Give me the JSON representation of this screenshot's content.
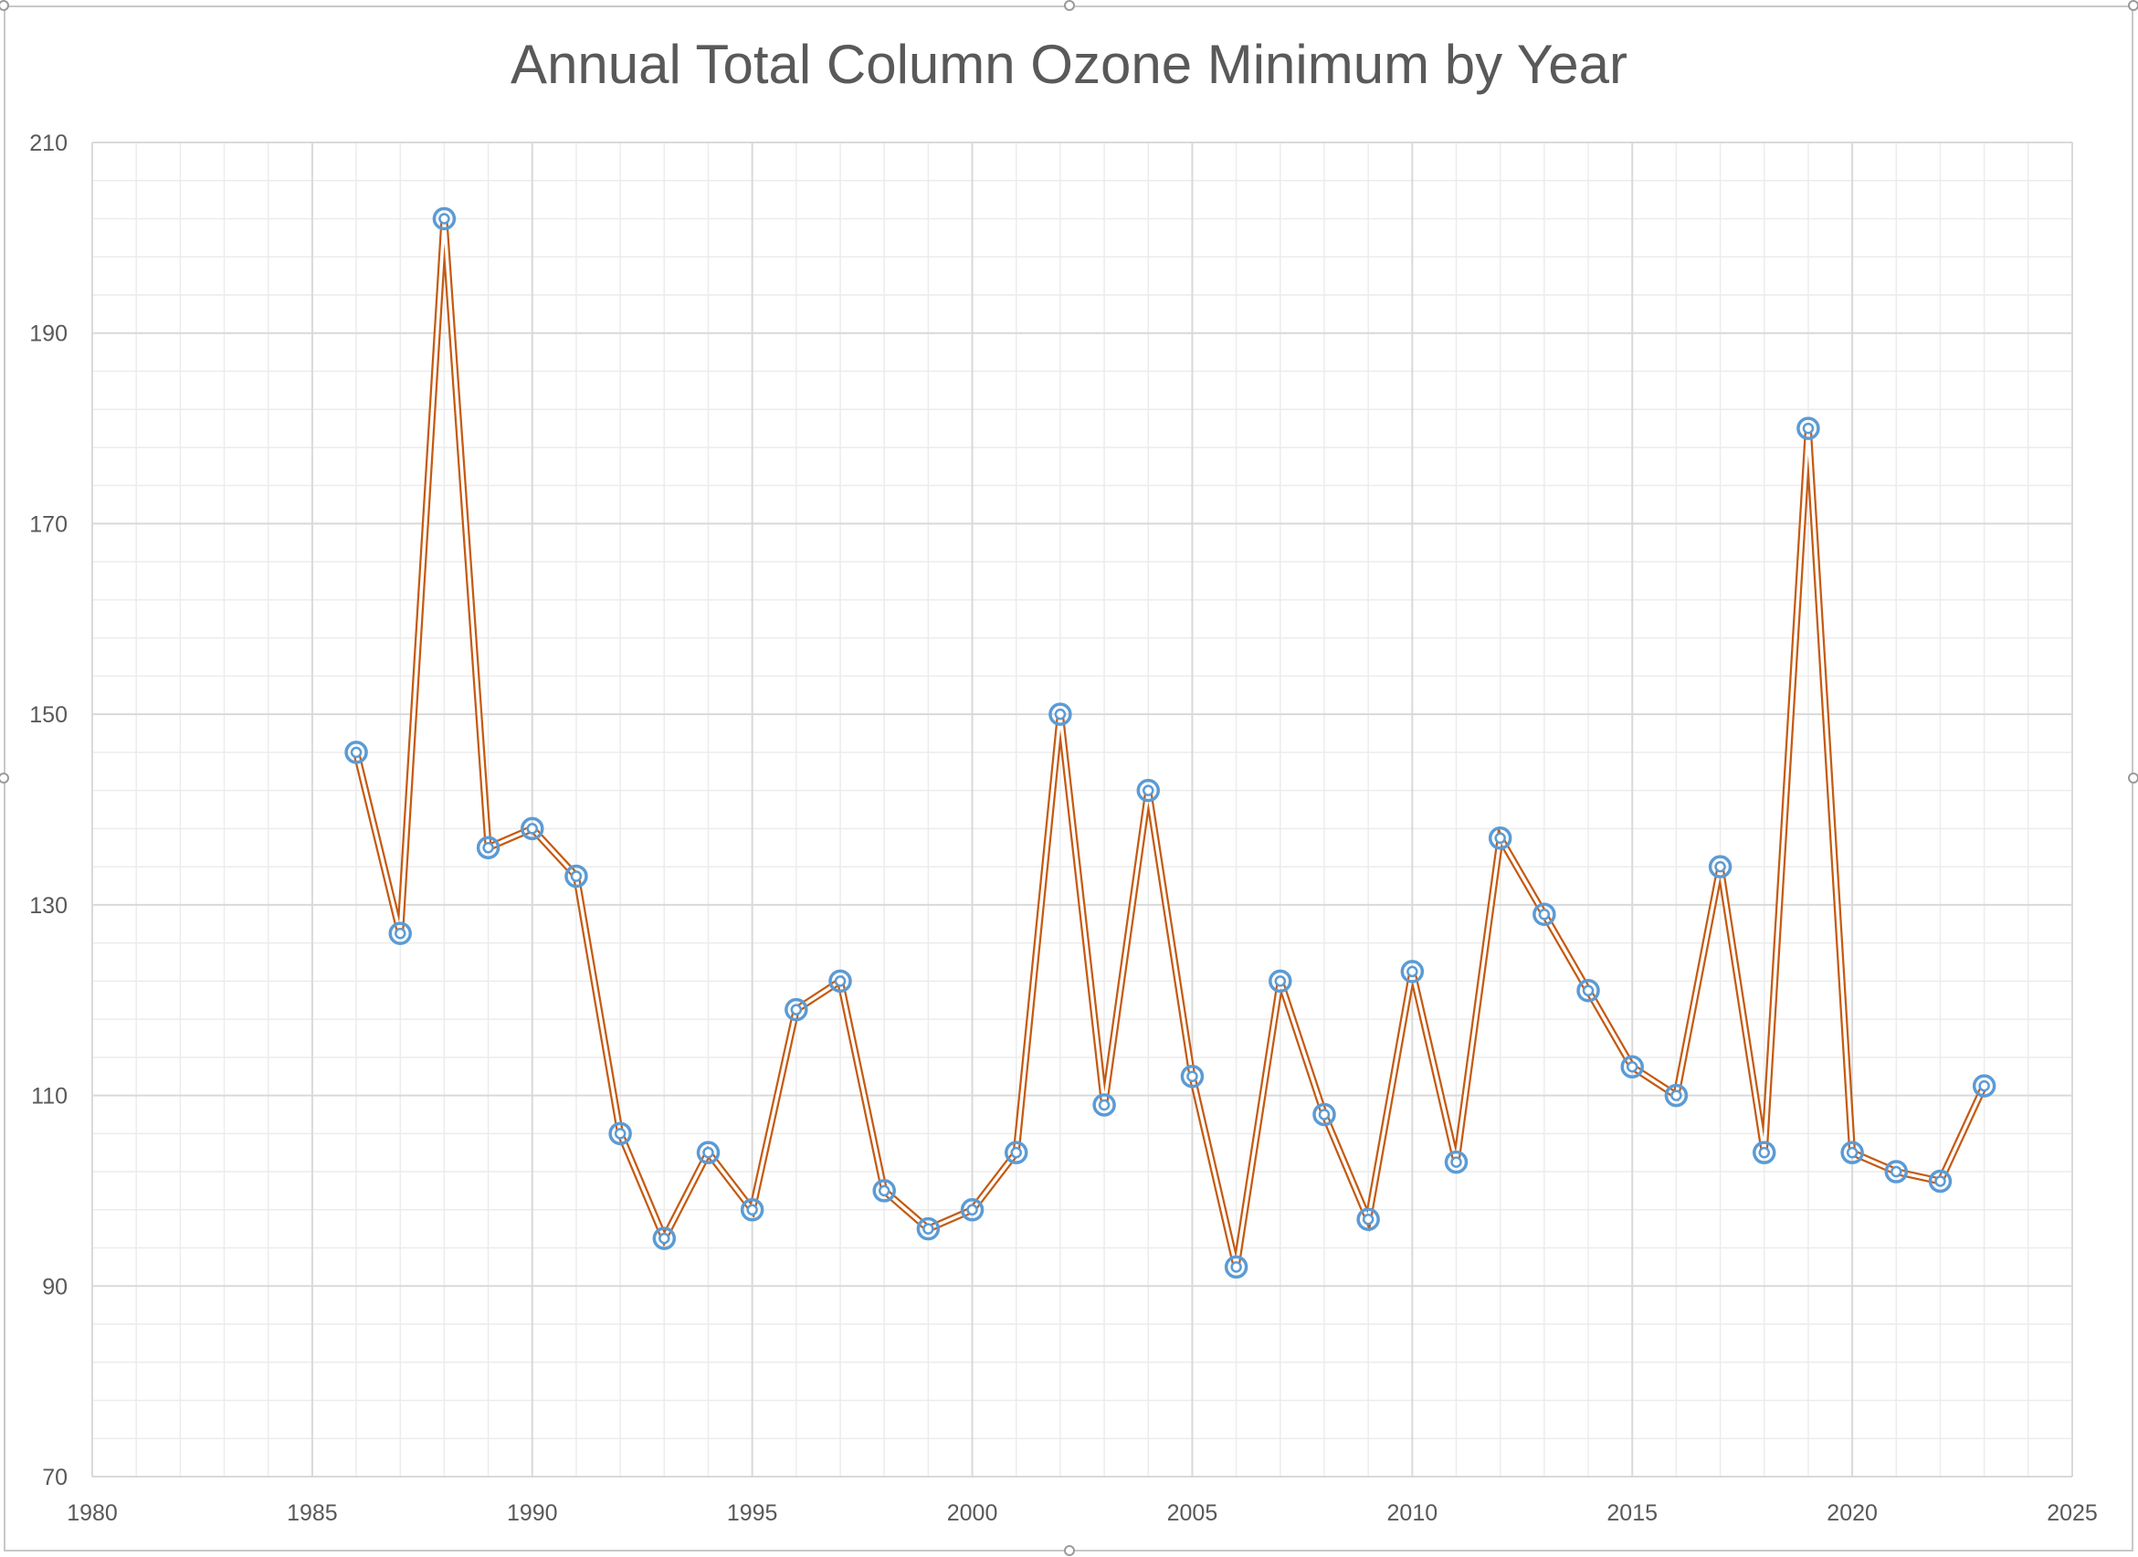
{
  "chart_data": {
    "type": "scatter",
    "title": "Annual Total Column Ozone Minimum by Year",
    "xlabel": "",
    "ylabel": "",
    "xlim": [
      1980,
      2025
    ],
    "ylim": [
      70,
      210
    ],
    "x_major_step": 5,
    "x_minor_step": 1,
    "y_major_step": 20,
    "y_minor_step": 4,
    "x_ticks": [
      "1980",
      "1985",
      "1990",
      "1995",
      "2000",
      "2005",
      "2010",
      "2015",
      "2020",
      "2025"
    ],
    "y_ticks": [
      "70",
      "90",
      "110",
      "130",
      "150",
      "170",
      "190",
      "210"
    ],
    "grid": true,
    "legend": "none",
    "colors": {
      "line": "#c55a11",
      "marker": "#5b9bd5",
      "grid_major": "#d9d9d9",
      "grid_minor": "#ececec",
      "text": "#595959"
    },
    "series": [
      {
        "x": [
          1986,
          1987,
          1988,
          1989,
          1990,
          1991,
          1992,
          1993,
          1994,
          1995,
          1996,
          1997,
          1998,
          1999,
          2000,
          2001,
          2002,
          2003,
          2004,
          2005,
          2006,
          2007,
          2008,
          2009,
          2010,
          2011,
          2012,
          2013,
          2014,
          2015,
          2016,
          2017,
          2018,
          2019,
          2020,
          2021,
          2022,
          2023
        ],
        "y": [
          146,
          127,
          202,
          136,
          138,
          133,
          106,
          95,
          104,
          98,
          119,
          122,
          100,
          96,
          98,
          104,
          150,
          109,
          142,
          112,
          92,
          122,
          108,
          97,
          123,
          103,
          137,
          129,
          121,
          113,
          110,
          134,
          104,
          180,
          104,
          102,
          101,
          111
        ]
      }
    ]
  }
}
